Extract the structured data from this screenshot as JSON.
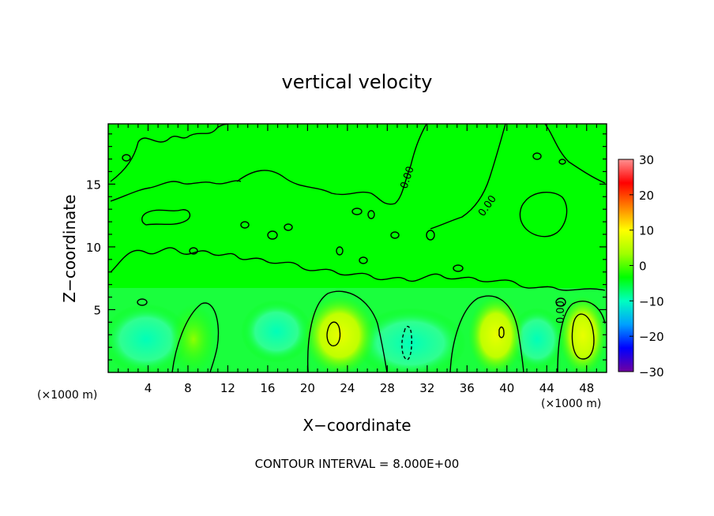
{
  "chart_data": {
    "type": "heatmap",
    "title": "vertical velocity",
    "xlabel": "X−coordinate",
    "ylabel": "Z−coordinate",
    "x_unit": "(×1000 m)",
    "z_unit": "(×1000 m)",
    "xlim": [
      0,
      50
    ],
    "ylim": [
      0,
      19.8
    ],
    "x_ticks": [
      4,
      8,
      12,
      16,
      20,
      24,
      28,
      32,
      36,
      40,
      44,
      48
    ],
    "x_tick_labels": [
      "4",
      "8",
      "12",
      "16",
      "20",
      "24",
      "28",
      "32",
      "36",
      "40",
      "44",
      "48"
    ],
    "y_ticks": [
      5,
      10,
      15
    ],
    "y_tick_labels": [
      "5",
      "10",
      "15"
    ],
    "colorbar": {
      "range": [
        -30,
        30
      ],
      "ticks": [
        30,
        20,
        10,
        0,
        -10,
        -20,
        -30
      ],
      "tick_labels": [
        "30",
        "20",
        "10",
        "0",
        "−10",
        "−20",
        "−30"
      ],
      "colors": [
        "#7000a0",
        "#0000ff",
        "#00a0ff",
        "#00ffc0",
        "#00ff00",
        "#a0ff00",
        "#ffff00",
        "#ff8000",
        "#ff0000",
        "#ff9090"
      ]
    },
    "contour_interval": "CONTOUR INTERVAL = 8.000E+00",
    "contour_labels": [
      "0.00",
      "0.00",
      "0.00"
    ],
    "features": [
      {
        "label": "updraft",
        "x": 22.5,
        "z": 3.2,
        "value": 8
      },
      {
        "label": "updraft",
        "x": 39.5,
        "z": 3.2,
        "value": 8
      },
      {
        "label": "updraft",
        "x": 47.0,
        "z": 3.0,
        "value": 10
      },
      {
        "label": "downdraft",
        "x": 30.0,
        "z": 2.4,
        "value": -8
      }
    ]
  }
}
